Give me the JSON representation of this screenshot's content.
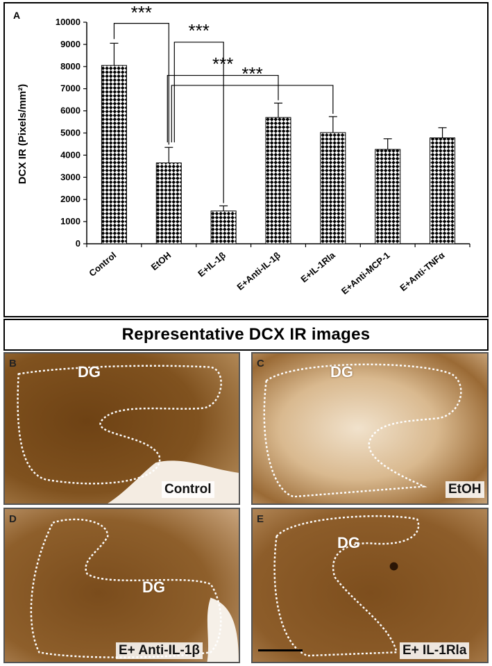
{
  "colors": {
    "bar_pattern": "#000000",
    "tissue": "#8a5a26",
    "outline": "#ffffff"
  },
  "panel_a": {
    "letter": "A"
  },
  "chart_data": {
    "type": "bar",
    "title": "",
    "xlabel": "",
    "ylabel": "DCX IR (Pixels/mm²)",
    "ylim": [
      0,
      10000
    ],
    "yticks": [
      0,
      1000,
      2000,
      3000,
      4000,
      5000,
      6000,
      7000,
      8000,
      9000,
      10000
    ],
    "categories": [
      "Control",
      "EtOH",
      "E+IL-1β",
      "E+Anti-IL-1β",
      "E+IL-1Rla",
      "E+Anti-MCP-1",
      "E+Anti-TNFα"
    ],
    "values": [
      8050,
      3650,
      1480,
      5700,
      5020,
      4260,
      4780
    ],
    "errors": [
      1000,
      700,
      230,
      650,
      720,
      480,
      460
    ],
    "pattern": "checkerboard",
    "significance": [
      {
        "from": "Control",
        "to": "EtOH",
        "label": "***"
      },
      {
        "from": "EtOH",
        "to": "E+IL-1β",
        "label": "***"
      },
      {
        "from": "EtOH",
        "to": "E+Anti-IL-1β",
        "label": "***"
      },
      {
        "from": "EtOH",
        "to": "E+IL-1Rla",
        "label": "***"
      }
    ]
  },
  "images_header": "Representative DCX IR images",
  "images": [
    {
      "letter": "B",
      "region": "DG",
      "condition": "Control"
    },
    {
      "letter": "C",
      "region": "DG",
      "condition": "EtOH"
    },
    {
      "letter": "D",
      "region": "DG",
      "condition": "E+ Anti-IL-1β"
    },
    {
      "letter": "E",
      "region": "DG",
      "condition": "E+ IL-1Rla"
    }
  ]
}
